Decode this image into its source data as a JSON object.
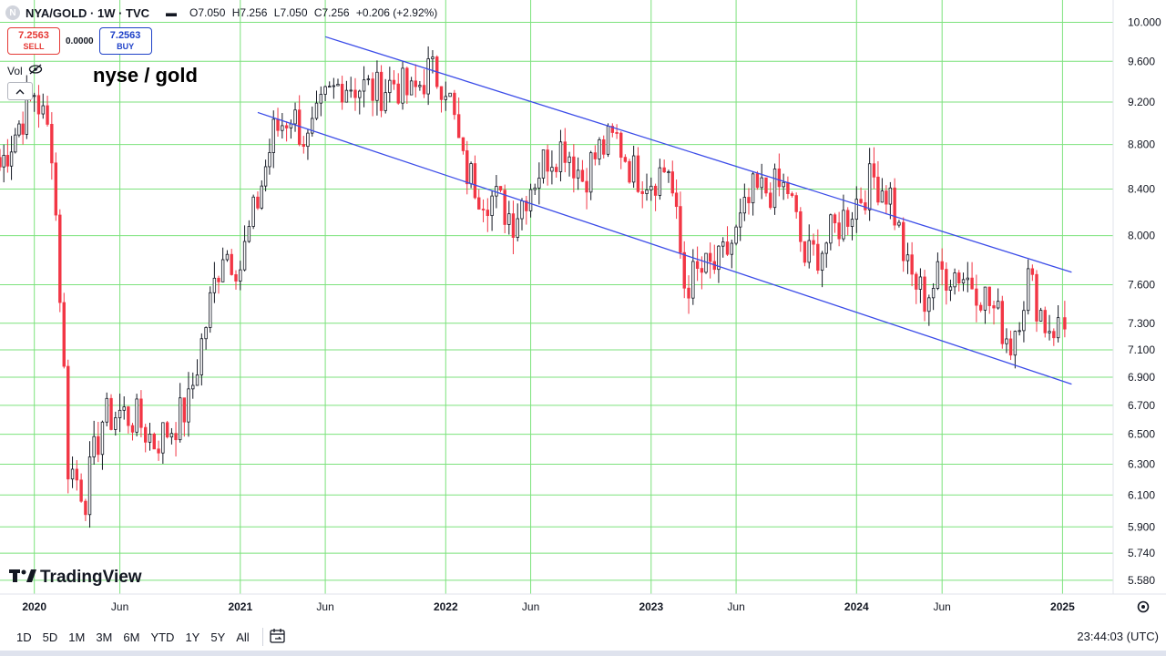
{
  "header": {
    "symbol": "NYA/GOLD · 1W · TVC",
    "symbol_initial": "N",
    "open": "O7.050",
    "high": "H7.256",
    "low": "L7.050",
    "close": "C7.256",
    "change": "+0.206 (+2.92%)"
  },
  "trade": {
    "sell_price": "7.2563",
    "sell_label": "SELL",
    "spread": "0.0000",
    "buy_price": "7.2563",
    "buy_label": "BUY"
  },
  "vol_label": "Vol",
  "caption": "nyse / gold",
  "logo_text": "TradingView",
  "range_buttons": [
    "1D",
    "5D",
    "1M",
    "3M",
    "6M",
    "YTD",
    "1Y",
    "5Y",
    "All"
  ],
  "clock": "23:44:03 (UTC)",
  "colors": {
    "up": "#131722",
    "down": "#f23645",
    "grid": "#7ce27c",
    "channel": "#3b4ce8",
    "sell": "#e53935",
    "buy": "#1e40c8"
  },
  "icons": [
    "eye-off-icon",
    "chevron-up-icon",
    "calendar-range-icon",
    "gear-icon",
    "tradingview-logo-icon"
  ],
  "chart_data": {
    "type": "candlestick",
    "title": "",
    "scale": "log",
    "ylim": [
      5.5,
      10.1
    ],
    "y_ticks": [
      "10.000",
      "9.600",
      "9.200",
      "8.800",
      "8.400",
      "8.000",
      "7.600",
      "7.300",
      "7.100",
      "6.900",
      "6.700",
      "6.500",
      "6.300",
      "6.100",
      "5.900",
      "5.740",
      "5.580"
    ],
    "x_ticks": [
      "2020",
      "Jun",
      "2021",
      "Jun",
      "2022",
      "Jun",
      "2023",
      "Jun",
      "2024",
      "Jun",
      "2025"
    ],
    "grid": true,
    "price_series": [
      {
        "date": "2019-11",
        "close": 8.6
      },
      {
        "date": "2020-01",
        "close": 9.3
      },
      {
        "date": "2020-02",
        "close": 8.8
      },
      {
        "date": "2020-03",
        "close": 6.3
      },
      {
        "date": "2020-04",
        "close": 6.1
      },
      {
        "date": "2020-05",
        "close": 6.6
      },
      {
        "date": "2020-06",
        "close": 6.65
      },
      {
        "date": "2020-07",
        "close": 6.6
      },
      {
        "date": "2020-08",
        "close": 6.45
      },
      {
        "date": "2020-09",
        "close": 6.55
      },
      {
        "date": "2020-10",
        "close": 6.7
      },
      {
        "date": "2020-11",
        "close": 7.3
      },
      {
        "date": "2020-12",
        "close": 7.9
      },
      {
        "date": "2021-01",
        "close": 7.75
      },
      {
        "date": "2021-02",
        "close": 8.3
      },
      {
        "date": "2021-03",
        "close": 8.9
      },
      {
        "date": "2021-04",
        "close": 9.1
      },
      {
        "date": "2021-05",
        "close": 8.8
      },
      {
        "date": "2021-06",
        "close": 9.2
      },
      {
        "date": "2021-07",
        "close": 9.4
      },
      {
        "date": "2021-08",
        "close": 9.35
      },
      {
        "date": "2021-09",
        "close": 9.3
      },
      {
        "date": "2021-10",
        "close": 9.4
      },
      {
        "date": "2021-11",
        "close": 9.25
      },
      {
        "date": "2021-12",
        "close": 9.5
      },
      {
        "date": "2022-01",
        "close": 9.4
      },
      {
        "date": "2022-02",
        "close": 8.6
      },
      {
        "date": "2022-03",
        "close": 8.4
      },
      {
        "date": "2022-04",
        "close": 8.3
      },
      {
        "date": "2022-05",
        "close": 8.15
      },
      {
        "date": "2022-06",
        "close": 8.45
      },
      {
        "date": "2022-07",
        "close": 8.7
      },
      {
        "date": "2022-08",
        "close": 8.8
      },
      {
        "date": "2022-09",
        "close": 8.5
      },
      {
        "date": "2022-10",
        "close": 8.75
      },
      {
        "date": "2022-11",
        "close": 8.85
      },
      {
        "date": "2022-12",
        "close": 8.55
      },
      {
        "date": "2023-01",
        "close": 8.5
      },
      {
        "date": "2023-02",
        "close": 8.6
      },
      {
        "date": "2023-03",
        "close": 7.6
      },
      {
        "date": "2023-04",
        "close": 7.7
      },
      {
        "date": "2023-05",
        "close": 7.75
      },
      {
        "date": "2023-06",
        "close": 8.0
      },
      {
        "date": "2023-07",
        "close": 8.35
      },
      {
        "date": "2023-08",
        "close": 8.4
      },
      {
        "date": "2023-09",
        "close": 8.4
      },
      {
        "date": "2023-10",
        "close": 7.8
      },
      {
        "date": "2023-11",
        "close": 7.9
      },
      {
        "date": "2023-12",
        "close": 8.1
      },
      {
        "date": "2024-01",
        "close": 8.3
      },
      {
        "date": "2024-02",
        "close": 8.5
      },
      {
        "date": "2024-03",
        "close": 8.35
      },
      {
        "date": "2024-04",
        "close": 7.7
      },
      {
        "date": "2024-05",
        "close": 7.5
      },
      {
        "date": "2024-06",
        "close": 7.7
      },
      {
        "date": "2024-07",
        "close": 7.7
      },
      {
        "date": "2024-08",
        "close": 7.6
      },
      {
        "date": "2024-09",
        "close": 7.4
      },
      {
        "date": "2024-10",
        "close": 7.15
      },
      {
        "date": "2024-11",
        "close": 7.65
      },
      {
        "date": "2024-12",
        "close": 7.3
      },
      {
        "date": "2025-01",
        "close": 7.256
      }
    ],
    "channel_lines": [
      {
        "name": "upper",
        "start": {
          "date": "2021-06",
          "value": 9.85
        },
        "end": {
          "date": "2025-01",
          "value": 7.7
        }
      },
      {
        "name": "lower",
        "start": {
          "date": "2021-02",
          "value": 9.1
        },
        "end": {
          "date": "2025-01",
          "value": 6.85
        }
      }
    ]
  }
}
